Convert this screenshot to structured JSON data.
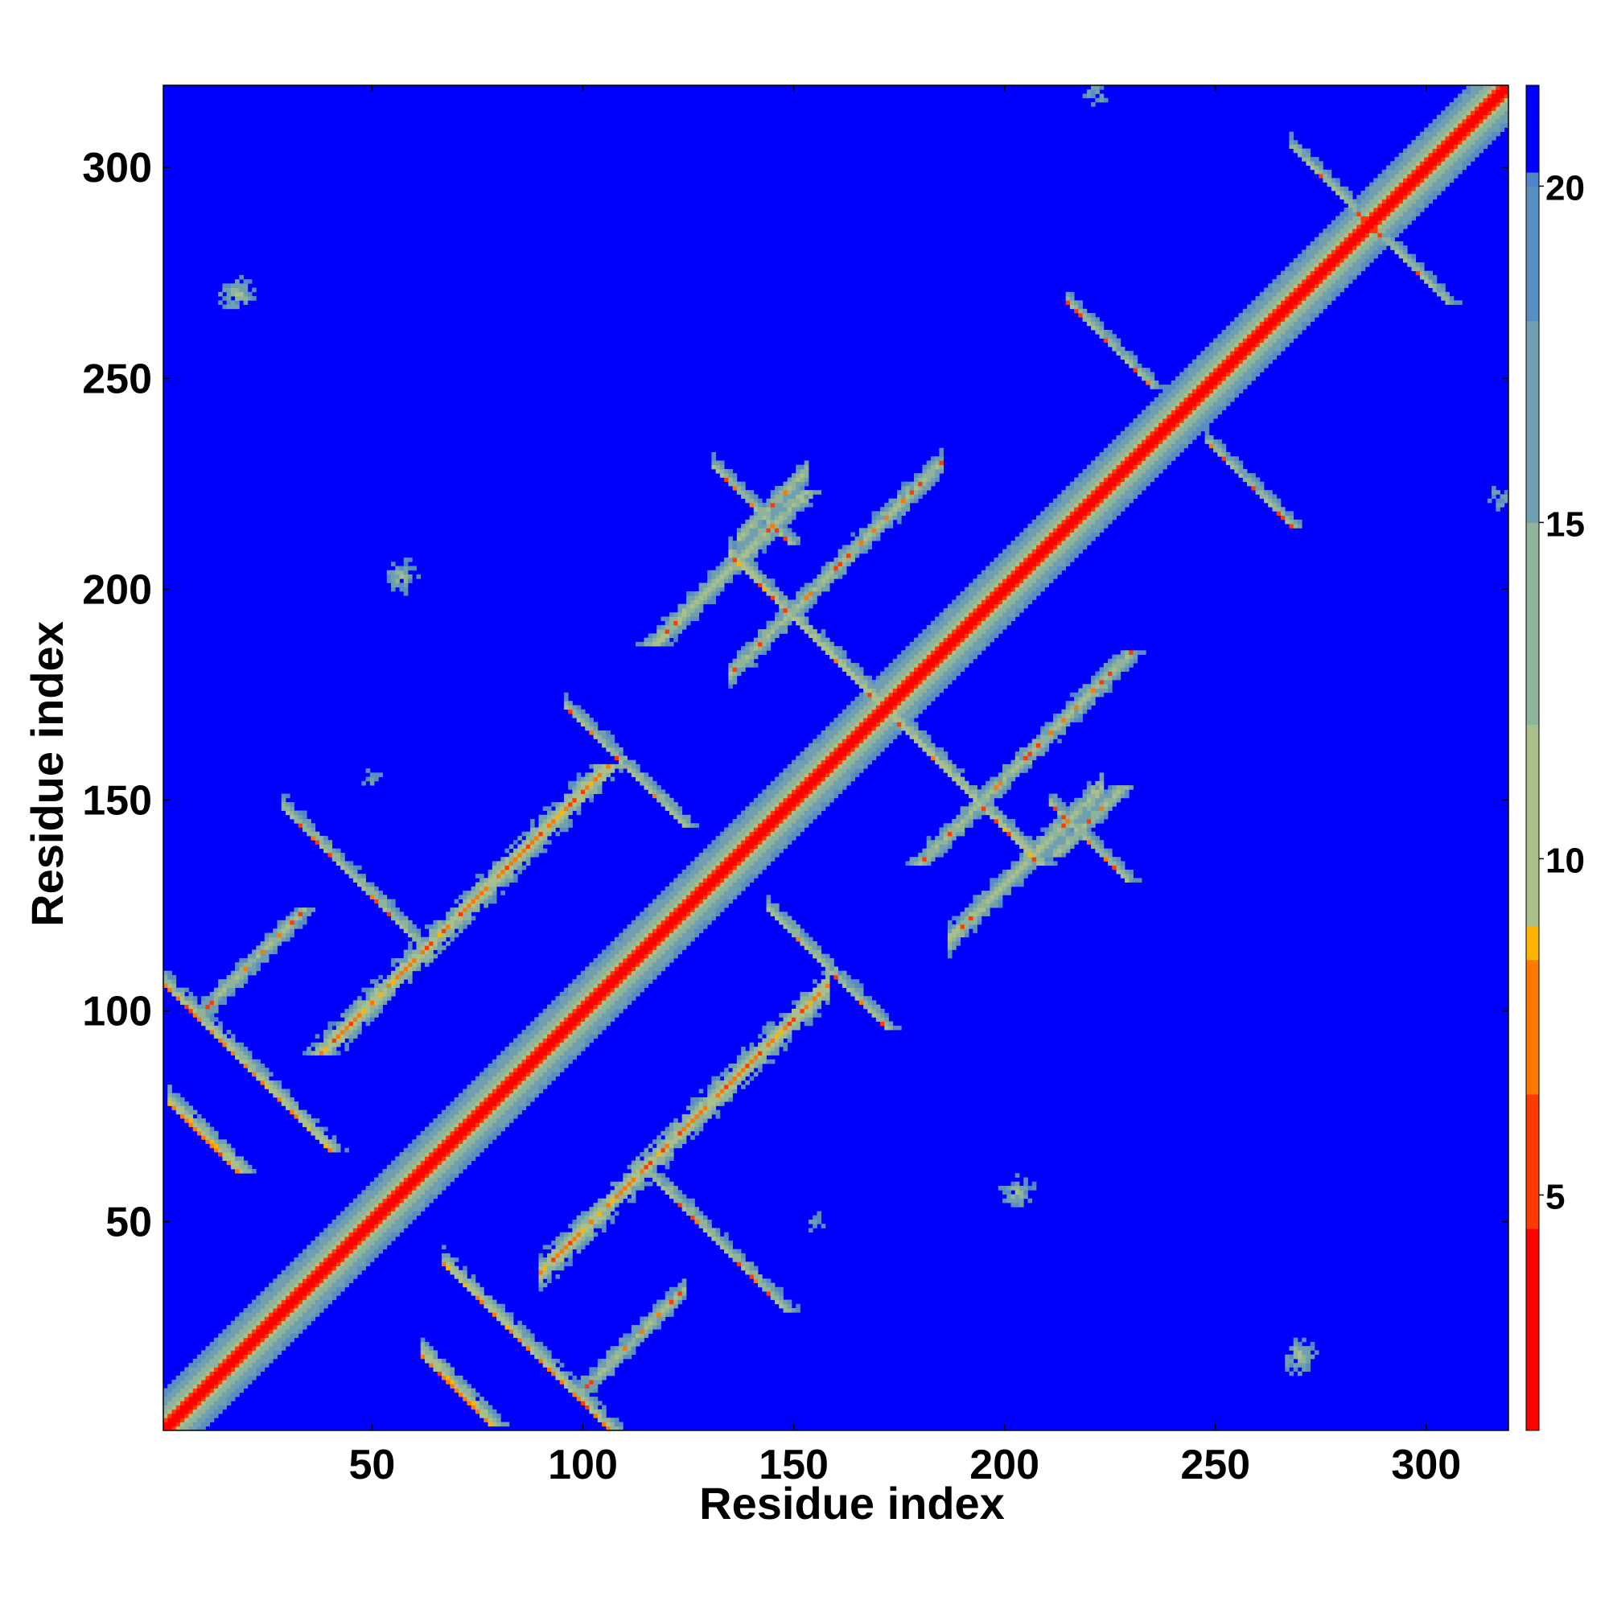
{
  "chart_data": {
    "type": "heatmap",
    "title": "",
    "xlabel": "Residue index",
    "ylabel": "Residue index",
    "xlim": [
      1,
      319
    ],
    "ylim": [
      1,
      319
    ],
    "x_ticks": [
      50,
      100,
      150,
      200,
      250,
      300
    ],
    "y_ticks": [
      50,
      100,
      150,
      200,
      250,
      300
    ],
    "grid": false,
    "matrix_symmetric": true,
    "residue_count": 319,
    "colorbar": {
      "range": [
        1.5,
        21.5
      ],
      "ticks": [
        5,
        10,
        15,
        20
      ],
      "cap_color_above": "#0000ff",
      "stops": [
        {
          "value": 1.5,
          "color": "#ff0000"
        },
        {
          "value": 4.5,
          "color": "#ff3a00"
        },
        {
          "value": 6.5,
          "color": "#ff7800"
        },
        {
          "value": 8.5,
          "color": "#ffb400"
        },
        {
          "value": 9.0,
          "color": "#a9c08c"
        },
        {
          "value": 12.0,
          "color": "#8fb39b"
        },
        {
          "value": 15.0,
          "color": "#6f9fb0"
        },
        {
          "value": 18.0,
          "color": "#5a8ec0"
        },
        {
          "value": 20.0,
          "color": "#4f84c8"
        }
      ]
    },
    "background_color": "#0000ff",
    "diagonal_band": {
      "core_distance": 3.8,
      "band_halfwidth_residues": 9
    },
    "contact_features": [
      {
        "kind": "antiparallel",
        "center": [
          18,
          89
        ],
        "halflength": 22,
        "distance": 7.5,
        "width": 5
      },
      {
        "kind": "antiparallel",
        "center": [
          45,
          132
        ],
        "halflength": 16,
        "distance": 9.5,
        "width": 4
      },
      {
        "kind": "parallel",
        "center": [
          72,
          124
        ],
        "halflength": 34,
        "distance": 6.5,
        "width": 6
      },
      {
        "kind": "parallel",
        "center": [
          22,
          112
        ],
        "halflength": 12,
        "distance": 10,
        "width": 4
      },
      {
        "kind": "antiparallel",
        "center": [
          70,
          10
        ],
        "halflength": 8,
        "distance": 6,
        "width": 4
      },
      {
        "kind": "antiparallel",
        "center": [
          110,
          158
        ],
        "halflength": 14,
        "distance": 9.5,
        "width": 4
      },
      {
        "kind": "parallel",
        "center": [
          135,
          205
        ],
        "halflength": 18,
        "distance": 9,
        "width": 4
      },
      {
        "kind": "antiparallel",
        "center": [
          188,
          155
        ],
        "halflength": 20,
        "distance": 8.5,
        "width": 4
      },
      {
        "kind": "antiparallel",
        "center": [
          140,
          220
        ],
        "halflength": 9,
        "distance": 10,
        "width": 4
      },
      {
        "kind": "parallel",
        "center": [
          205,
          160
        ],
        "halflength": 25,
        "distance": 9.5,
        "width": 4
      },
      {
        "kind": "parallel",
        "center": [
          220,
          145
        ],
        "halflength": 8,
        "distance": 10,
        "width": 4
      },
      {
        "kind": "antiparallel",
        "center": [
          225,
          258
        ],
        "halflength": 10,
        "distance": 10.5,
        "width": 4
      },
      {
        "kind": "antiparallel",
        "center": [
          290,
          283
        ],
        "halflength": 15,
        "distance": 11,
        "width": 3
      },
      {
        "kind": "patch",
        "center": [
          270,
          18
        ],
        "radius": 4,
        "distance": 9
      },
      {
        "kind": "patch",
        "center": [
          18,
          270
        ],
        "radius": 4,
        "distance": 9
      },
      {
        "kind": "patch",
        "center": [
          203,
          57
        ],
        "radius": 4,
        "distance": 10
      },
      {
        "kind": "patch",
        "center": [
          57,
          203
        ],
        "radius": 4,
        "distance": 10
      },
      {
        "kind": "patch",
        "center": [
          155,
          50
        ],
        "radius": 5,
        "distance": 14
      },
      {
        "kind": "patch",
        "center": [
          50,
          155
        ],
        "radius": 5,
        "distance": 14
      },
      {
        "kind": "patch",
        "center": [
          222,
          318
        ],
        "radius": 3,
        "distance": 12
      },
      {
        "kind": "patch",
        "center": [
          318,
          222
        ],
        "radius": 3,
        "distance": 12
      }
    ]
  }
}
